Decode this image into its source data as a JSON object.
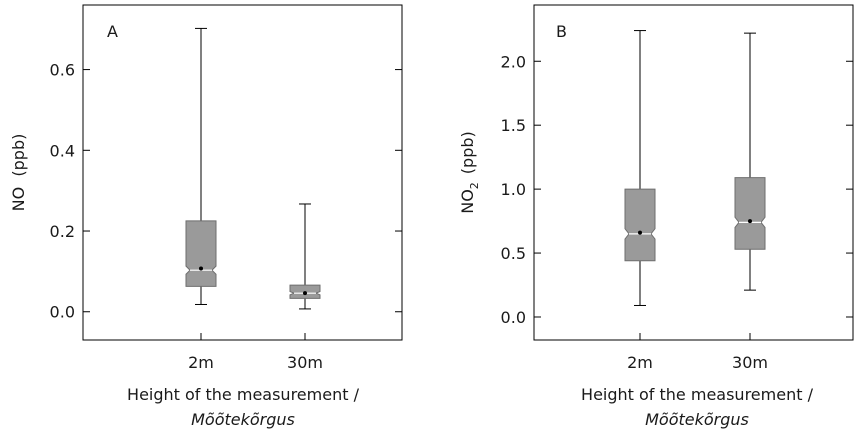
{
  "chart_data": [
    {
      "type": "box",
      "panel": "A",
      "xlabel": "Height of the measurement /",
      "xlabel_italic": "Mõõtekõrgus",
      "ylabel": "NO  (ppb)",
      "ylim": [
        -0.07,
        0.76
      ],
      "yticks": [
        0.0,
        0.2,
        0.4,
        0.6
      ],
      "ytick_labels": [
        "0.0",
        "0.2",
        "0.4",
        "0.6"
      ],
      "categories": [
        "2m",
        "30m"
      ],
      "boxes": [
        {
          "min": 0.018,
          "q1": 0.063,
          "median": 0.103,
          "q3": 0.225,
          "max": 0.702,
          "mean": 0.107,
          "notch_low": 0.093,
          "notch_high": 0.113
        },
        {
          "min": 0.007,
          "q1": 0.033,
          "median": 0.046,
          "q3": 0.066,
          "max": 0.267,
          "mean": 0.046,
          "notch_low": 0.042,
          "notch_high": 0.05
        }
      ]
    },
    {
      "type": "box",
      "panel": "B",
      "xlabel": "Height of the measurement /",
      "xlabel_italic": "Mõõtekõrgus",
      "ylabel": "NO",
      "ylabel_sub": "2",
      "ylabel_unit": "(ppb)",
      "ylim": [
        -0.18,
        2.44
      ],
      "yticks": [
        0.0,
        0.5,
        1.0,
        1.5,
        2.0
      ],
      "ytick_labels": [
        "0.0",
        "0.5",
        "1.0",
        "1.5",
        "2.0"
      ],
      "categories": [
        "2m",
        "30m"
      ],
      "boxes": [
        {
          "min": 0.09,
          "q1": 0.44,
          "median": 0.65,
          "q3": 1.0,
          "max": 2.24,
          "mean": 0.66,
          "notch_low": 0.61,
          "notch_high": 0.69
        },
        {
          "min": 0.21,
          "q1": 0.53,
          "median": 0.74,
          "q3": 1.09,
          "max": 2.22,
          "mean": 0.75,
          "notch_low": 0.7,
          "notch_high": 0.78
        }
      ]
    }
  ]
}
